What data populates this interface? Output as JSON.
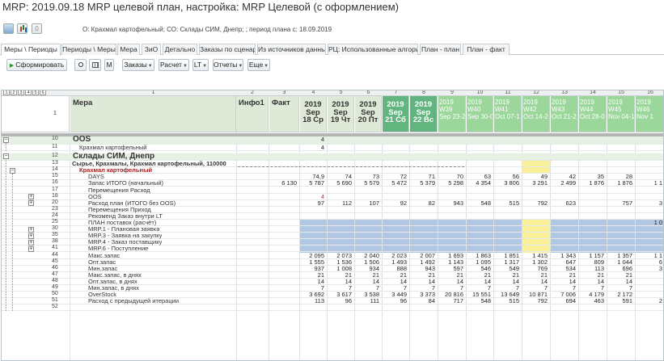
{
  "window": {
    "title": "MRP: 2019.09.18 MRP целевой план, настройка: MRP Целевой (с оформлением)"
  },
  "topbar": {
    "counter": "0",
    "period_info": "О: Крахмал картофельный; СО: Склады СИМ,  Днепр; ; период плана с: 18.09.2019"
  },
  "tabs": [
    "Меры \\ Периоды",
    "Периоды \\ Меры",
    "Мера",
    "ЗиО",
    "Детально",
    "Заказы по сценарию",
    "Из источников данных",
    "РЦ: Использованные алгоритмы",
    "План - план",
    "План - факт"
  ],
  "toolbar": {
    "form": "Сформировать",
    "m": "М",
    "orders": "Заказы",
    "calc": "Расчет",
    "lt": "LT",
    "reports": "Отчеты",
    "more": "Еще"
  },
  "grid": {
    "levels": [
      "1",
      "2",
      "3",
      "4",
      "5",
      "6"
    ],
    "col_numbers": [
      "1",
      "2",
      "3",
      "4",
      "5",
      "6",
      "7",
      "8",
      "9",
      "10",
      "11",
      "12",
      "13",
      "14",
      "15",
      "16"
    ],
    "header_row_num": "1",
    "header_mera": "Мера",
    "header_info": "Инфо1",
    "header_fact": "Факт",
    "day_cols": [
      {
        "y": "2019",
        "m": "Sep",
        "d": "18 Ср"
      },
      {
        "y": "2019",
        "m": "Sep",
        "d": "19 Чт"
      },
      {
        "y": "2019",
        "m": "Sep",
        "d": "20 Пт"
      },
      {
        "y": "2019",
        "m": "Sep",
        "d": "21 Сб"
      },
      {
        "y": "2019",
        "m": "Sep",
        "d": "22 Вс"
      }
    ],
    "week_cols": [
      {
        "y": "2019",
        "w": "W39",
        "r": "Sep 23-2"
      },
      {
        "y": "2019",
        "w": "W40",
        "r": "Sep 30-0"
      },
      {
        "y": "2019",
        "w": "W41",
        "r": "Oct 07-1"
      },
      {
        "y": "2019",
        "w": "W42",
        "r": "Oct 14-2"
      },
      {
        "y": "2019",
        "w": "W43",
        "r": "Oct 21-2"
      },
      {
        "y": "2019",
        "w": "W44",
        "r": "Oct 28-0"
      },
      {
        "y": "2019",
        "w": "W45",
        "r": "Nov 04-1"
      },
      {
        "y": "2019",
        "w": "W46",
        "r": "Nov 1"
      }
    ],
    "rows": [
      {
        "n": "10",
        "label": "OOS",
        "style": "group",
        "vals": {
          "c4": "4"
        }
      },
      {
        "n": "11",
        "label": "Крахмал картофельный",
        "style": "sub",
        "vals": {
          "c4": "4"
        }
      },
      {
        "n": "12",
        "label": "Склады СИМ,  Днепр",
        "style": "group",
        "vals": {}
      },
      {
        "n": "13",
        "label": "Сырье, Крахмалы, Крахмал картофельный, 110000",
        "style": "boldsmall",
        "vals": {}
      },
      {
        "n": "14",
        "label": "Крахмал картофельный",
        "style": "redbold",
        "vals": {}
      },
      {
        "n": "15",
        "label": "DAYS",
        "style": "plain",
        "vals": {
          "c4": "74,9",
          "c5": "74",
          "c6": "73",
          "c7": "72",
          "c8": "71",
          "c9": "70",
          "c10": "63",
          "c11": "56",
          "c12": "49",
          "c13": "42",
          "c14": "35",
          "c15": "28"
        }
      },
      {
        "n": "16",
        "label": "Запас ИТОГО (начальный)",
        "style": "plain",
        "vals": {
          "c3": "6 130",
          "c4": "5 787",
          "c5": "5 690",
          "c6": "5 579",
          "c7": "5 472",
          "c8": "5 379",
          "c9": "5 298",
          "c10": "4 354",
          "c11": "3 806",
          "c12": "3 291",
          "c13": "2 499",
          "c14": "1 876",
          "c15": "1 876",
          "c16": "1 1"
        }
      },
      {
        "n": "17",
        "label": "Перемещения Расход",
        "style": "plain",
        "vals": {}
      },
      {
        "n": "18",
        "label": "OOS",
        "style": "plain",
        "vals": {
          "c4": "4"
        },
        "red": [
          "c4"
        ]
      },
      {
        "n": "20",
        "label": "Расход план (ИТОГО без OOS)",
        "style": "plain",
        "vals": {
          "c4": "97",
          "c5": "112",
          "c6": "107",
          "c7": "92",
          "c8": "82",
          "c9": "943",
          "c10": "548",
          "c11": "515",
          "c12": "792",
          "c13": "623",
          "c15": "757",
          "c16": "3"
        }
      },
      {
        "n": "23",
        "label": "Перемещения Приход",
        "style": "plain",
        "vals": {}
      },
      {
        "n": "24",
        "label": "Рекоменд Заказ внутри LT",
        "style": "plain",
        "vals": {}
      },
      {
        "n": "25",
        "label": "ПЛАН поставок (расчёт)",
        "style": "plain",
        "vals": {
          "c16": "1 0"
        }
      },
      {
        "n": "30",
        "label": "MRP.1 - Плановая заявка",
        "style": "plain",
        "vals": {}
      },
      {
        "n": "35",
        "label": "MRP.3 - Заявка на закупку",
        "style": "plain",
        "vals": {}
      },
      {
        "n": "38",
        "label": "MRP.4 - Заказ поставщику",
        "style": "plain",
        "vals": {}
      },
      {
        "n": "41",
        "label": "MRP.6 - Поступление",
        "style": "plain",
        "vals": {}
      },
      {
        "n": "44",
        "label": "Макс.запас",
        "style": "plain",
        "vals": {
          "c4": "2 095",
          "c5": "2 073",
          "c6": "2 040",
          "c7": "2 023",
          "c8": "2 007",
          "c9": "1 693",
          "c10": "1 863",
          "c11": "1 851",
          "c12": "1 415",
          "c13": "1 343",
          "c14": "1 157",
          "c15": "1 357",
          "c16": "1 1"
        }
      },
      {
        "n": "45",
        "label": "Опт.запас",
        "style": "plain",
        "vals": {
          "c4": "1 555",
          "c5": "1 536",
          "c6": "1 506",
          "c7": "1 493",
          "c8": "1 492",
          "c9": "1 143",
          "c10": "1 095",
          "c11": "1 317",
          "c12": "1 302",
          "c13": "647",
          "c14": "809",
          "c15": "1 044",
          "c16": "6"
        }
      },
      {
        "n": "46",
        "label": "Мин.запас",
        "style": "plain",
        "vals": {
          "c4": "937",
          "c5": "1 008",
          "c6": "934",
          "c7": "888",
          "c8": "943",
          "c9": "597",
          "c10": "546",
          "c11": "549",
          "c12": "769",
          "c13": "534",
          "c14": "113",
          "c15": "696",
          "c16": "3"
        }
      },
      {
        "n": "47",
        "label": "Макс.запас, в днях",
        "style": "plain",
        "vals": {
          "c4": "21",
          "c5": "21",
          "c6": "21",
          "c7": "21",
          "c8": "21",
          "c9": "21",
          "c10": "21",
          "c11": "21",
          "c12": "21",
          "c13": "21",
          "c14": "21",
          "c15": "21"
        }
      },
      {
        "n": "48",
        "label": "Опт.запас, в днях",
        "style": "plain",
        "vals": {
          "c4": "14",
          "c5": "14",
          "c6": "14",
          "c7": "14",
          "c8": "14",
          "c9": "14",
          "c10": "14",
          "c11": "14",
          "c12": "14",
          "c13": "14",
          "c14": "14",
          "c15": "14"
        }
      },
      {
        "n": "49",
        "label": "Мин.запас, в днях",
        "style": "plain",
        "vals": {
          "c4": "7",
          "c5": "7",
          "c6": "7",
          "c7": "7",
          "c8": "7",
          "c9": "7",
          "c10": "7",
          "c11": "7",
          "c12": "7",
          "c13": "7",
          "c14": "7",
          "c15": "7"
        }
      },
      {
        "n": "50",
        "label": "OverStock",
        "style": "plain",
        "vals": {
          "c4": "3 692",
          "c5": "3 617",
          "c6": "3 538",
          "c7": "3 449",
          "c8": "3 373",
          "c9": "20 816",
          "c10": "15 551",
          "c11": "13 649",
          "c12": "10 871",
          "c13": "7 006",
          "c14": "4 179",
          "c15": "2 172"
        }
      },
      {
        "n": "51",
        "label": "Расход с предыдущей итерации",
        "style": "plain",
        "vals": {
          "c4": "113",
          "c5": "96",
          "c6": "111",
          "c7": "96",
          "c8": "84",
          "c9": "717",
          "c10": "548",
          "c11": "515",
          "c12": "792",
          "c13": "694",
          "c14": "463",
          "c15": "591",
          "c16": "2"
        }
      },
      {
        "n": "52",
        "label": "",
        "style": "plain",
        "vals": {}
      }
    ]
  },
  "colors": {
    "header_green": "#dfe9d7",
    "week_green": "#9bd79b",
    "weekend_green": "#62b57f",
    "plan_blue": "#b2c7e2",
    "highlight_yellow": "#fbf09a",
    "accent_red": "#a52020"
  }
}
